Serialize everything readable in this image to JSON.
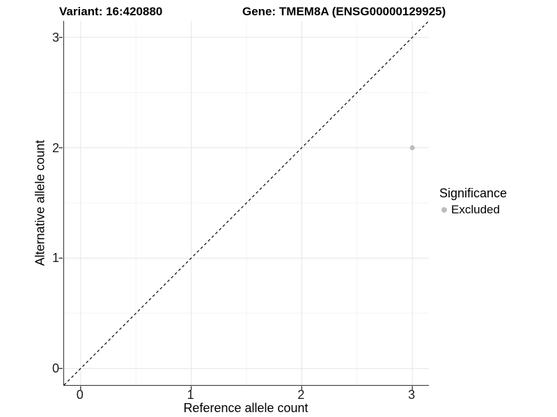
{
  "titles": {
    "variant": "Variant: 16:420880",
    "gene": "Gene: TMEM8A (ENSG00000129925)"
  },
  "chart_data": {
    "type": "scatter",
    "xlabel": "Reference allele count",
    "ylabel": "Alternative allele count",
    "xlim": [
      -0.15,
      3.15
    ],
    "ylim": [
      -0.15,
      3.15
    ],
    "xticks": [
      0,
      1,
      2,
      3
    ],
    "yticks": [
      0,
      1,
      2,
      3
    ],
    "minor_gridlines": [
      0.5,
      1.5,
      2.5
    ],
    "grid": "major+minor",
    "points": [
      {
        "x": 3,
        "y": 2,
        "significance": "Excluded"
      }
    ],
    "identity_line": {
      "from": [
        -0.15,
        -0.15
      ],
      "to": [
        3.15,
        3.15
      ],
      "style": "dashed"
    },
    "legend": {
      "title": "Significance",
      "position": "right",
      "entries": [
        {
          "label": "Excluded",
          "color": "#bdbdbd",
          "marker": "circle"
        }
      ]
    }
  },
  "colors": {
    "background": "#ffffff",
    "point": "#bdbdbd",
    "grid_major": "#e7e7e7",
    "grid_minor": "#f3f3f3",
    "axis_line": "#2e2e2e",
    "dashed_line": "#000000",
    "tick_text": "#1a1a1a",
    "title_text": "#000000"
  }
}
